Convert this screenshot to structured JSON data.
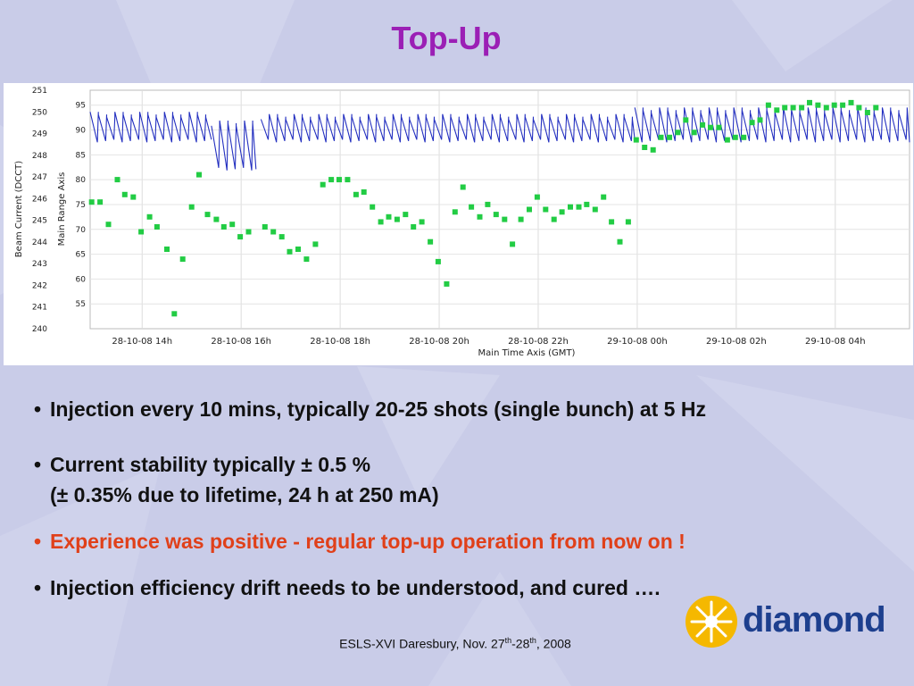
{
  "slide": {
    "title": "Top-Up",
    "bullets": [
      "Injection every 10 mins, typically 20-25 shots (single bunch) at 5 Hz",
      "Current stability typically ± 0.5 %",
      "(± 0.35% due to lifetime, 24 h at 250 mA)",
      "Experience was positive - regular top-up operation from now on !",
      "Injection efficiency drift needs to be understood, and cured …."
    ],
    "footer": {
      "prefix": "ESLS-XVI Daresbury, Nov. 27",
      "sup1": "th",
      "mid": "-28",
      "sup2": "th",
      "suffix": ", 2008"
    },
    "logo_text": "diamond",
    "colors": {
      "title": "#9b1fb5",
      "highlight": "#e0401a",
      "beam": "#2430c0",
      "efficiency": "#22cc44",
      "logo": "#1d3f8e",
      "logo_sun": "#f5b800"
    }
  },
  "chart_data": {
    "type": "line",
    "title": "",
    "xlabel": "Main Time Axis (GMT)",
    "ylabel_left": "Beam Current (DCCT)",
    "ylabel_right": "Main Range Axis",
    "xlim": [
      12.95,
      29.5
    ],
    "ylim_left": [
      240,
      251
    ],
    "ylim_right": [
      50,
      98
    ],
    "left_ticks": [
      "240",
      "241",
      "242",
      "243",
      "244",
      "245",
      "246",
      "247",
      "248",
      "249",
      "250",
      "251"
    ],
    "right_ticks": [
      "55",
      "60",
      "65",
      "70",
      "75",
      "80",
      "85",
      "90",
      "95"
    ],
    "x_ticks": [
      {
        "x": 14,
        "label": "28-10-08 14h"
      },
      {
        "x": 16,
        "label": "28-10-08 16h"
      },
      {
        "x": 18,
        "label": "28-10-08 18h"
      },
      {
        "x": 20,
        "label": "28-10-08 20h"
      },
      {
        "x": 22,
        "label": "28-10-08 22h"
      },
      {
        "x": 24,
        "label": "29-10-08 00h"
      },
      {
        "x": 26,
        "label": "29-10-08 02h"
      },
      {
        "x": 28,
        "label": "29-10-08 04h"
      }
    ],
    "grid": true,
    "series": [
      {
        "axis": "left",
        "topup_segments": [
          {
            "start": 12.95,
            "end": 15.4,
            "high": 250.0,
            "low": 248.6
          },
          {
            "start": 15.4,
            "end": 16.3,
            "high": 249.6,
            "low": 247.3
          },
          {
            "start": 16.4,
            "end": 23.95,
            "high": 249.9,
            "low": 248.6
          },
          {
            "start": 23.95,
            "end": 29.5,
            "high": 250.2,
            "low": 248.6
          }
        ],
        "period_hours": 0.1667
      },
      {
        "axis": "right",
        "points": [
          [
            12.98,
            75.5
          ],
          [
            13.15,
            75.5
          ],
          [
            13.32,
            71
          ],
          [
            13.5,
            80
          ],
          [
            13.65,
            77
          ],
          [
            13.82,
            76.5
          ],
          [
            13.98,
            69.5
          ],
          [
            14.15,
            72.5
          ],
          [
            14.3,
            70.5
          ],
          [
            14.5,
            66
          ],
          [
            14.65,
            53
          ],
          [
            14.82,
            64
          ],
          [
            15.0,
            74.5
          ],
          [
            15.15,
            81
          ],
          [
            15.32,
            73
          ],
          [
            15.5,
            72
          ],
          [
            15.65,
            70.5
          ],
          [
            15.82,
            71
          ],
          [
            15.98,
            68.5
          ],
          [
            16.15,
            69.5
          ],
          [
            16.48,
            70.5
          ],
          [
            16.65,
            69.5
          ],
          [
            16.82,
            68.5
          ],
          [
            16.98,
            65.5
          ],
          [
            17.15,
            66
          ],
          [
            17.32,
            64
          ],
          [
            17.5,
            67
          ],
          [
            17.65,
            79
          ],
          [
            17.82,
            80
          ],
          [
            17.98,
            80
          ],
          [
            18.15,
            80
          ],
          [
            18.32,
            77
          ],
          [
            18.48,
            77.5
          ],
          [
            18.65,
            74.5
          ],
          [
            18.82,
            71.5
          ],
          [
            18.98,
            72.5
          ],
          [
            19.15,
            72
          ],
          [
            19.32,
            73
          ],
          [
            19.48,
            70.5
          ],
          [
            19.65,
            71.5
          ],
          [
            19.82,
            67.5
          ],
          [
            19.98,
            63.5
          ],
          [
            20.15,
            59
          ],
          [
            20.32,
            73.5
          ],
          [
            20.48,
            78.5
          ],
          [
            20.65,
            74.5
          ],
          [
            20.82,
            72.5
          ],
          [
            20.98,
            75
          ],
          [
            21.15,
            73
          ],
          [
            21.32,
            72
          ],
          [
            21.48,
            67
          ],
          [
            21.65,
            72
          ],
          [
            21.82,
            74
          ],
          [
            21.98,
            76.5
          ],
          [
            22.15,
            74
          ],
          [
            22.32,
            72
          ],
          [
            22.48,
            73.5
          ],
          [
            22.65,
            74.5
          ],
          [
            22.82,
            74.5
          ],
          [
            22.98,
            75
          ],
          [
            23.15,
            74
          ],
          [
            23.32,
            76.5
          ],
          [
            23.48,
            71.5
          ],
          [
            23.65,
            67.5
          ],
          [
            23.82,
            71.5
          ],
          [
            23.98,
            88
          ],
          [
            24.15,
            86.5
          ],
          [
            24.32,
            86
          ],
          [
            24.48,
            88.5
          ],
          [
            24.65,
            88.5
          ],
          [
            24.82,
            89.5
          ],
          [
            24.98,
            92
          ],
          [
            25.15,
            89.5
          ],
          [
            25.32,
            91
          ],
          [
            25.48,
            90.5
          ],
          [
            25.65,
            90.5
          ],
          [
            25.82,
            88
          ],
          [
            25.98,
            88.5
          ],
          [
            26.15,
            88.5
          ],
          [
            26.32,
            91.5
          ],
          [
            26.48,
            92
          ],
          [
            26.65,
            95
          ],
          [
            26.82,
            94
          ],
          [
            26.98,
            94.5
          ],
          [
            27.15,
            94.5
          ],
          [
            27.32,
            94.5
          ],
          [
            27.48,
            95.5
          ],
          [
            27.65,
            95
          ],
          [
            27.82,
            94.5
          ],
          [
            27.98,
            95
          ],
          [
            28.15,
            95
          ],
          [
            28.32,
            95.5
          ],
          [
            28.48,
            94.5
          ],
          [
            28.65,
            93.5
          ],
          [
            28.82,
            94.5
          ]
        ]
      }
    ]
  }
}
